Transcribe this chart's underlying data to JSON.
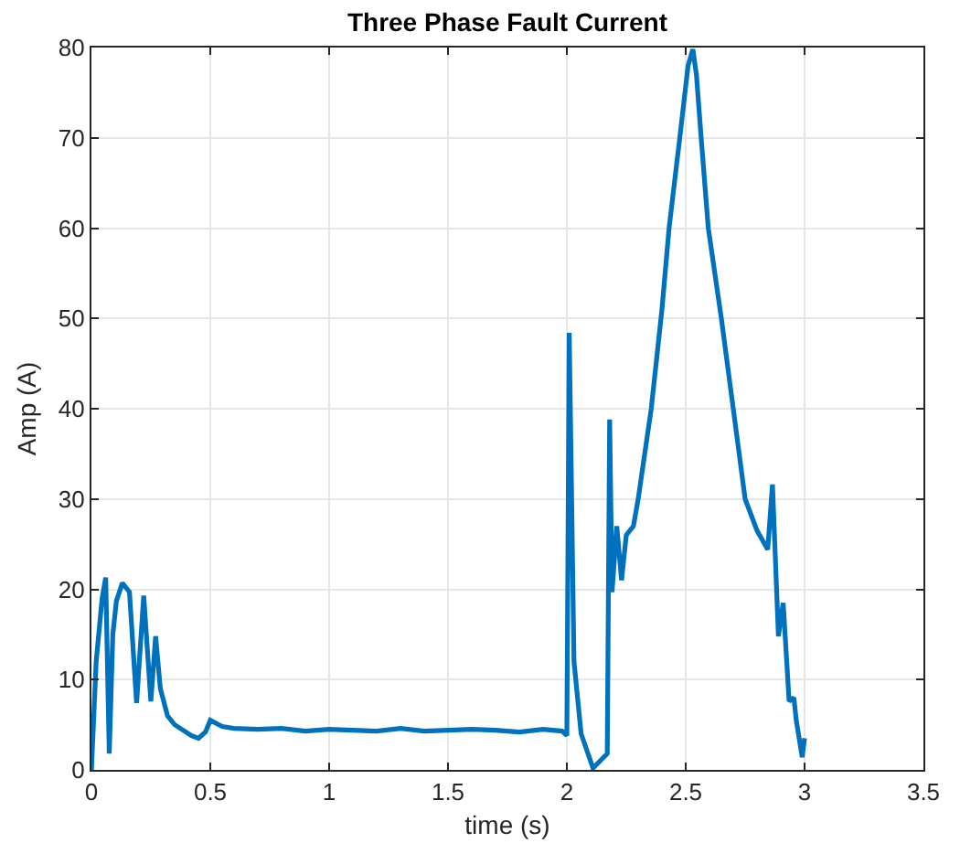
{
  "chart_data": {
    "type": "line",
    "title": "Three Phase Fault Current",
    "xlabel": "time (s)",
    "ylabel": "Amp (A)",
    "series": [
      {
        "color": "#0072bd",
        "x": [
          0,
          0.02,
          0.045,
          0.06,
          0.075,
          0.09,
          0.105,
          0.13,
          0.16,
          0.19,
          0.22,
          0.25,
          0.27,
          0.29,
          0.32,
          0.35,
          0.38,
          0.42,
          0.45,
          0.48,
          0.5,
          0.55,
          0.6,
          0.7,
          0.8,
          0.9,
          1.0,
          1.1,
          1.2,
          1.3,
          1.4,
          1.5,
          1.6,
          1.7,
          1.8,
          1.9,
          1.98,
          2.0,
          2.01,
          2.03,
          2.06,
          2.11,
          2.17,
          2.18,
          2.19,
          2.21,
          2.23,
          2.25,
          2.28,
          2.3,
          2.355,
          2.4,
          2.43,
          2.475,
          2.51,
          2.53,
          2.545,
          2.565,
          2.595,
          2.65,
          2.7,
          2.75,
          2.8,
          2.845,
          2.865,
          2.89,
          2.91,
          2.935,
          2.955,
          2.965,
          2.99,
          3.0
        ],
        "values": [
          0,
          12,
          19,
          21.3,
          1.8,
          15,
          18.7,
          20.7,
          19.7,
          7.4,
          19.3,
          7.6,
          14.8,
          9,
          6,
          5,
          4.5,
          3.8,
          3.5,
          4.2,
          5.5,
          4.8,
          4.6,
          4.5,
          4.6,
          4.3,
          4.5,
          4.4,
          4.3,
          4.6,
          4.3,
          4.4,
          4.5,
          4.4,
          4.2,
          4.5,
          4.3,
          3.8,
          48.4,
          12,
          4,
          0.2,
          1.8,
          38.8,
          19.7,
          27,
          21,
          26,
          27,
          30,
          40,
          51,
          60,
          70,
          78,
          79.8,
          77,
          70,
          60,
          50,
          40,
          30,
          26.5,
          24.4,
          31.6,
          14.8,
          18.5,
          7.6,
          8,
          5.5,
          1.4,
          3.5
        ]
      }
    ],
    "xlim": [
      0,
      3.5
    ],
    "xticks": [
      0,
      0.5,
      1,
      1.5,
      2,
      2.5,
      3,
      3.5
    ],
    "ylim": [
      0,
      80
    ],
    "yticks": [
      0,
      10,
      20,
      30,
      40,
      50,
      60,
      70,
      80
    ],
    "grid": true,
    "marker": "none",
    "line_style": "solid"
  }
}
